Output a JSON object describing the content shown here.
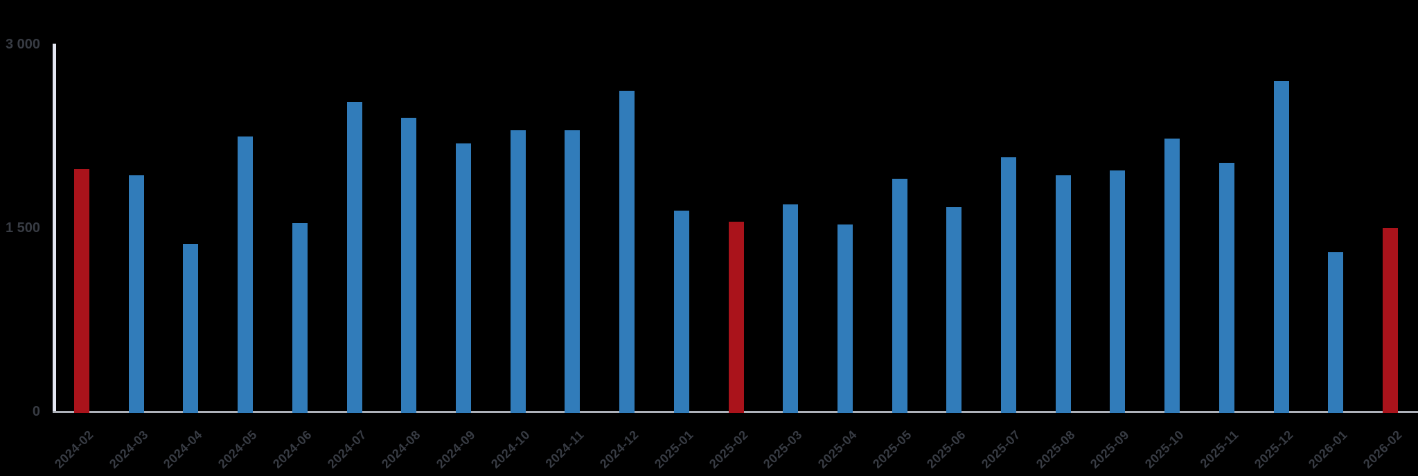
{
  "chart_data": {
    "type": "bar",
    "title": "",
    "xlabel": "",
    "ylabel": "",
    "categories": [
      "2024-02",
      "2024-03",
      "2024-04",
      "2024-05",
      "2024-06",
      "2024-07",
      "2024-08",
      "2024-09",
      "2024-10",
      "2024-11",
      "2024-12",
      "2025-01",
      "2025-02",
      "2025-03",
      "2025-04",
      "2025-05",
      "2025-06",
      "2025-07",
      "2025-08",
      "2025-09",
      "2025-10",
      "2025-11",
      "2025-12",
      "2026-01",
      "2026-02"
    ],
    "values": [
      1980,
      1930,
      1370,
      2250,
      1540,
      2530,
      2400,
      2190,
      2300,
      2300,
      2620,
      1640,
      1550,
      1690,
      1530,
      1900,
      1670,
      2080,
      1930,
      1970,
      2230,
      2030,
      2700,
      1300,
      1500
    ],
    "highlighted_categories": [
      "2024-02",
      "2025-02",
      "2026-02"
    ],
    "bar_color_default": "#317cba",
    "bar_color_highlight": "#aa131b",
    "ylim": [
      0,
      3000
    ],
    "yticks": [
      {
        "value": 0,
        "label": "0"
      },
      {
        "value": 1500,
        "label": "1 500"
      },
      {
        "value": 3000,
        "label": "3 000"
      }
    ],
    "x_tick_rotation_deg": -44,
    "grid": false,
    "legend": false,
    "background_color": "#000000",
    "y_axis_line_color": "#e4e7f2",
    "x_axis_line_color": "#aeb2ba",
    "tick_label_color": "#383c44"
  }
}
